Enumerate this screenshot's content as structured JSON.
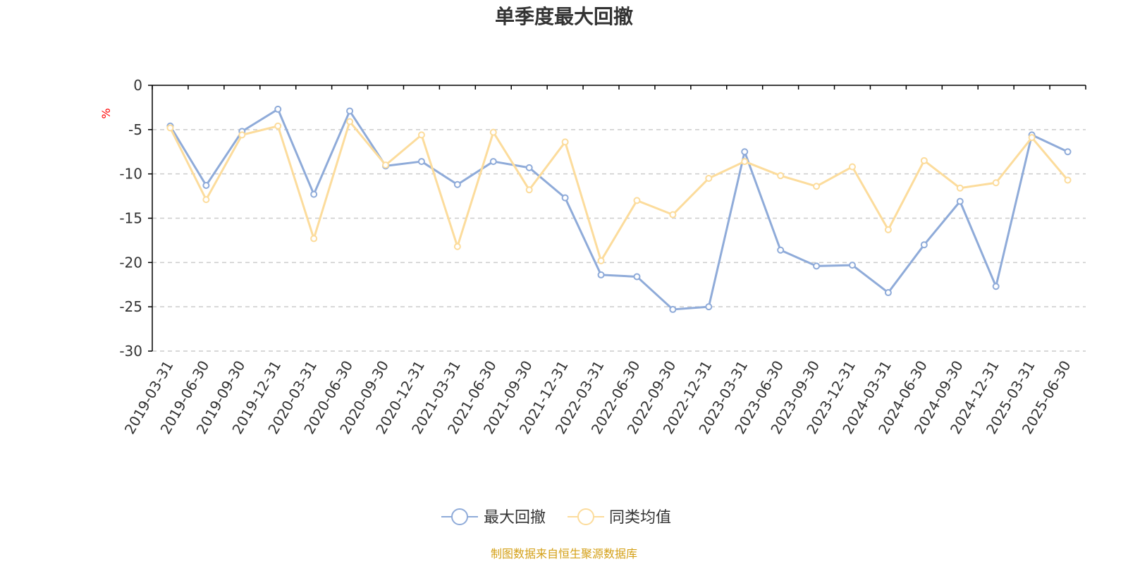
{
  "chart_data": {
    "type": "line",
    "title": "单季度最大回撤",
    "ylabel": "%",
    "xlabel": "",
    "ylim": [
      -30,
      0
    ],
    "yticks": [
      0,
      -5,
      -10,
      -15,
      -20,
      -25,
      -30
    ],
    "grid": "horizontal dashed",
    "legend_position": "bottom-center",
    "categories": [
      "2019-03-31",
      "2019-06-30",
      "2019-09-30",
      "2019-12-31",
      "2020-03-31",
      "2020-06-30",
      "2020-09-30",
      "2020-12-31",
      "2021-03-31",
      "2021-06-30",
      "2021-09-30",
      "2021-12-31",
      "2022-03-31",
      "2022-06-30",
      "2022-09-30",
      "2022-12-31",
      "2023-03-31",
      "2023-06-30",
      "2023-09-30",
      "2023-12-31",
      "2024-03-31",
      "2024-06-30",
      "2024-09-30",
      "2024-12-31",
      "2025-03-31",
      "2025-06-30"
    ],
    "series": [
      {
        "name": "最大回撤",
        "color": "#8fabd9",
        "values": [
          -4.6,
          -11.3,
          -5.2,
          -2.7,
          -12.3,
          -2.9,
          -9.1,
          -8.6,
          -11.2,
          -8.6,
          -9.3,
          -12.7,
          -21.4,
          -21.6,
          -25.3,
          -25.0,
          -7.5,
          -18.6,
          -20.4,
          -20.3,
          -23.4,
          -18.0,
          -13.1,
          -22.7,
          -5.6,
          -7.5
        ]
      },
      {
        "name": "同类均值",
        "color": "#fcdc9c",
        "values": [
          -4.8,
          -12.9,
          -5.6,
          -4.6,
          -17.3,
          -4.1,
          -9.0,
          -5.6,
          -18.2,
          -5.3,
          -11.8,
          -6.4,
          -19.8,
          -13.0,
          -14.6,
          -10.5,
          -8.6,
          -10.2,
          -11.4,
          -9.2,
          -16.3,
          -8.5,
          -11.6,
          -11.0,
          -5.9,
          -10.7
        ]
      }
    ]
  },
  "colors": {
    "title": "#333333",
    "ylabel": "#ff0000",
    "source": "#d4a017",
    "grid": "#cccccc",
    "axis": "#000000"
  },
  "source_note": "制图数据来自恒生聚源数据库"
}
